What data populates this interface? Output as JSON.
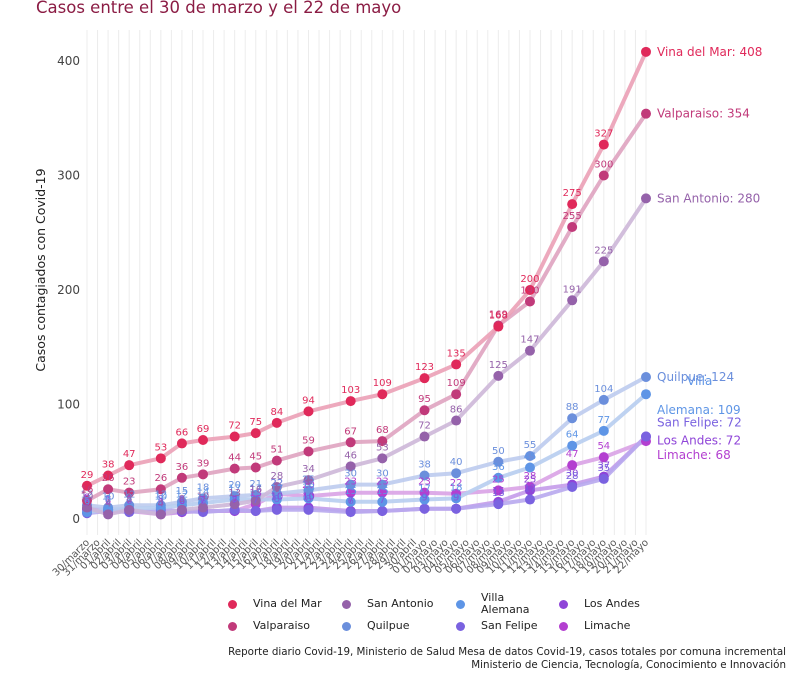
{
  "chart_data": {
    "type": "line",
    "title": "Casos entre el 30 de marzo y el 22 de mayo",
    "xlabel": "",
    "ylabel": "Casos contagiados con Covid-19",
    "ylim": [
      0,
      420
    ],
    "yticks": [
      0,
      100,
      200,
      300,
      400
    ],
    "grid": "vertical",
    "legend_position": "bottom",
    "categories": [
      "30/marzo",
      "31/marzo",
      "01/abril",
      "02/abril",
      "03/abril",
      "04/abril",
      "05/abril",
      "06/abril",
      "07/abril",
      "08/abril",
      "09/abril",
      "10/abril",
      "11/abril",
      "12/abril",
      "13/abril",
      "14/abril",
      "15/abril",
      "16/abril",
      "17/abril",
      "18/abril",
      "19/abril",
      "20/abril",
      "21/abril",
      "22/abril",
      "23/abril",
      "24/abril",
      "25/abril",
      "26/abril",
      "27/abril",
      "28/abril",
      "29/abril",
      "30/abril",
      "01/mayo",
      "02/mayo",
      "03/mayo",
      "04/mayo",
      "05/mayo",
      "06/mayo",
      "07/mayo",
      "08/mayo",
      "09/mayo",
      "10/mayo",
      "11/mayo",
      "12/mayo",
      "13/mayo",
      "14/mayo",
      "15/mayo",
      "16/mayo",
      "17/mayo",
      "18/mayo",
      "19/mayo",
      "20/mayo",
      "21/mayo",
      "22/mayo"
    ],
    "point_indices": [
      0,
      2,
      4,
      7,
      9,
      11,
      14,
      16,
      18,
      21,
      25,
      28,
      32,
      35,
      39,
      42,
      46,
      49,
      53
    ],
    "series": [
      {
        "name": "Vina del Mar",
        "color": "#e0295a",
        "line": "#eba0b6",
        "values": [
          29,
          38,
          47,
          53,
          66,
          69,
          72,
          75,
          84,
          94,
          103,
          109,
          123,
          135,
          168,
          200,
          275,
          327,
          408
        ],
        "end_label": "Vina del Mar: 408"
      },
      {
        "name": "Valparaiso",
        "color": "#c13a7a",
        "line": "#dfa3c0",
        "values": [
          16,
          26,
          23,
          26,
          36,
          39,
          44,
          45,
          51,
          59,
          67,
          68,
          95,
          109,
          169,
          190,
          255,
          300,
          354
        ],
        "end_label": "Valparaiso: 354"
      },
      {
        "name": "San Antonio",
        "color": "#9562aa",
        "line": "#cdb7d8",
        "values": [
          10,
          4,
          8,
          4,
          8,
          10,
          13,
          16,
          28,
          34,
          46,
          53,
          72,
          86,
          125,
          147,
          191,
          225,
          280
        ],
        "end_label": "San Antonio: 280"
      },
      {
        "name": "Villa Alemana",
        "color": "#5e95e6",
        "line": "#b7cdf0",
        "values": [
          6,
          8,
          9,
          10,
          12,
          14,
          17,
          17,
          17,
          18,
          15,
          15,
          17,
          18,
          36,
          45,
          64,
          77,
          109
        ],
        "end_label": "Villa Alemana: 109"
      },
      {
        "name": "Quilpue",
        "color": "#6b8fdc",
        "line": "#bccbee",
        "values": [
          12,
          10,
          12,
          12,
          15,
          18,
          20,
          21,
          22,
          25,
          30,
          30,
          38,
          40,
          50,
          55,
          88,
          104,
          124
        ],
        "end_label": "Quilpue: 124"
      },
      {
        "name": "San Felipe",
        "color": "#7a62e0",
        "line": "#b8a9ee",
        "values": [
          5,
          7,
          6,
          8,
          7,
          6,
          8,
          7,
          8,
          8,
          6,
          7,
          9,
          9,
          13,
          17,
          28,
          35,
          72
        ],
        "end_label": "San Felipe: 72"
      },
      {
        "name": "Los Andes",
        "color": "#8f45d8",
        "line": "#c49bea",
        "values": [
          9,
          8,
          8,
          5,
          6,
          7,
          7,
          7,
          10,
          10,
          7,
          7,
          9,
          9,
          15,
          25,
          30,
          37,
          72
        ],
        "end_label": "Los Andes: 72"
      },
      {
        "name": "Limache",
        "color": "#b33fd0",
        "line": "#d9a2e6",
        "values": [
          8,
          6,
          7,
          4,
          6,
          7,
          7,
          13,
          22,
          20,
          23,
          23,
          23,
          22,
          25,
          28,
          47,
          54,
          68
        ],
        "end_label": "Limache: 68"
      }
    ]
  },
  "legend": {
    "items": [
      {
        "label": "Vina del Mar",
        "color": "#e0295a"
      },
      {
        "label": "Valparaiso",
        "color": "#c13a7a"
      },
      {
        "label": "San Antonio",
        "color": "#9562aa"
      },
      {
        "label": "Quilpue",
        "color": "#6b8fdc"
      },
      {
        "label": "Villa Alemana",
        "color": "#5e95e6"
      },
      {
        "label": "San Felipe",
        "color": "#7a62e0"
      },
      {
        "label": "Los Andes",
        "color": "#8f45d8"
      },
      {
        "label": "Limache",
        "color": "#b33fd0"
      }
    ]
  },
  "source": {
    "line1": "Reporte diario Covid-19, Ministerio de Salud Mesa de datos Covid-19, casos totales por comuna incremental",
    "line2": "Ministerio de Ciencia, Tecnología, Conocimiento e Innovación"
  }
}
